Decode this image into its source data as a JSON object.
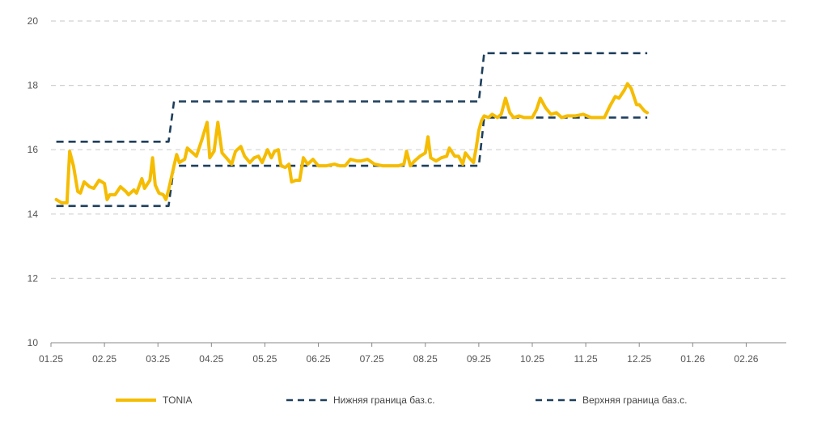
{
  "chart_data": {
    "type": "line",
    "title": "",
    "xlabel": "",
    "ylabel": "",
    "ylim": [
      10,
      20
    ],
    "yticks": [
      10,
      12,
      14,
      16,
      18,
      20
    ],
    "x_ticks": [
      "01.25",
      "02.25",
      "03.25",
      "04.25",
      "05.25",
      "06.25",
      "07.25",
      "08.25",
      "09.25",
      "10.25",
      "11.25",
      "12.25",
      "01.26",
      "02.26"
    ],
    "grid": true,
    "legend_position": "bottom",
    "series": [
      {
        "name": "TONIA",
        "color": "#F5BC00",
        "style": "solid",
        "points": [
          [
            0.1,
            14.45
          ],
          [
            0.2,
            14.35
          ],
          [
            0.3,
            14.35
          ],
          [
            0.35,
            15.95
          ],
          [
            0.42,
            15.5
          ],
          [
            0.5,
            14.7
          ],
          [
            0.55,
            14.65
          ],
          [
            0.62,
            15.0
          ],
          [
            0.72,
            14.85
          ],
          [
            0.8,
            14.8
          ],
          [
            0.9,
            15.05
          ],
          [
            1.0,
            14.95
          ],
          [
            1.05,
            14.45
          ],
          [
            1.1,
            14.6
          ],
          [
            1.2,
            14.6
          ],
          [
            1.3,
            14.85
          ],
          [
            1.4,
            14.7
          ],
          [
            1.45,
            14.6
          ],
          [
            1.55,
            14.75
          ],
          [
            1.6,
            14.65
          ],
          [
            1.7,
            15.1
          ],
          [
            1.75,
            14.8
          ],
          [
            1.85,
            15.05
          ],
          [
            1.9,
            15.75
          ],
          [
            1.95,
            14.9
          ],
          [
            2.02,
            14.65
          ],
          [
            2.1,
            14.6
          ],
          [
            2.15,
            14.45
          ],
          [
            2.2,
            14.75
          ],
          [
            2.3,
            15.5
          ],
          [
            2.35,
            15.85
          ],
          [
            2.4,
            15.6
          ],
          [
            2.5,
            15.7
          ],
          [
            2.55,
            16.05
          ],
          [
            2.62,
            15.95
          ],
          [
            2.72,
            15.8
          ],
          [
            2.82,
            16.3
          ],
          [
            2.92,
            16.85
          ],
          [
            2.97,
            15.75
          ],
          [
            3.05,
            15.95
          ],
          [
            3.12,
            16.85
          ],
          [
            3.2,
            15.9
          ],
          [
            3.28,
            15.75
          ],
          [
            3.38,
            15.55
          ],
          [
            3.45,
            15.95
          ],
          [
            3.55,
            16.1
          ],
          [
            3.62,
            15.8
          ],
          [
            3.72,
            15.6
          ],
          [
            3.8,
            15.75
          ],
          [
            3.88,
            15.8
          ],
          [
            3.95,
            15.6
          ],
          [
            4.05,
            16.0
          ],
          [
            4.12,
            15.75
          ],
          [
            4.18,
            15.95
          ],
          [
            4.25,
            16.0
          ],
          [
            4.3,
            15.5
          ],
          [
            4.38,
            15.45
          ],
          [
            4.45,
            15.55
          ],
          [
            4.5,
            15.0
          ],
          [
            4.58,
            15.05
          ],
          [
            4.65,
            15.05
          ],
          [
            4.72,
            15.75
          ],
          [
            4.8,
            15.55
          ],
          [
            4.9,
            15.7
          ],
          [
            5.0,
            15.5
          ],
          [
            5.15,
            15.5
          ],
          [
            5.3,
            15.55
          ],
          [
            5.4,
            15.5
          ],
          [
            5.5,
            15.5
          ],
          [
            5.6,
            15.7
          ],
          [
            5.72,
            15.65
          ],
          [
            5.8,
            15.65
          ],
          [
            5.92,
            15.7
          ],
          [
            6.05,
            15.55
          ],
          [
            6.2,
            15.5
          ],
          [
            6.35,
            15.5
          ],
          [
            6.5,
            15.5
          ],
          [
            6.6,
            15.55
          ],
          [
            6.65,
            15.95
          ],
          [
            6.72,
            15.5
          ],
          [
            6.8,
            15.65
          ],
          [
            6.9,
            15.8
          ],
          [
            7.0,
            15.9
          ],
          [
            7.05,
            16.4
          ],
          [
            7.1,
            15.75
          ],
          [
            7.2,
            15.65
          ],
          [
            7.3,
            15.75
          ],
          [
            7.4,
            15.8
          ],
          [
            7.45,
            16.05
          ],
          [
            7.55,
            15.8
          ],
          [
            7.62,
            15.8
          ],
          [
            7.7,
            15.55
          ],
          [
            7.75,
            15.9
          ],
          [
            7.82,
            15.75
          ],
          [
            7.9,
            15.6
          ],
          [
            7.95,
            16.05
          ],
          [
            8.0,
            16.6
          ],
          [
            8.05,
            16.9
          ],
          [
            8.1,
            17.05
          ],
          [
            8.18,
            17.0
          ],
          [
            8.25,
            17.1
          ],
          [
            8.35,
            17.0
          ],
          [
            8.42,
            17.1
          ],
          [
            8.5,
            17.6
          ],
          [
            8.58,
            17.15
          ],
          [
            8.65,
            17.0
          ],
          [
            8.75,
            17.05
          ],
          [
            8.85,
            17.0
          ],
          [
            9.0,
            17.0
          ],
          [
            9.08,
            17.25
          ],
          [
            9.15,
            17.6
          ],
          [
            9.25,
            17.3
          ],
          [
            9.35,
            17.1
          ],
          [
            9.45,
            17.15
          ],
          [
            9.55,
            17.0
          ],
          [
            9.65,
            17.05
          ],
          [
            9.8,
            17.05
          ],
          [
            9.95,
            17.1
          ],
          [
            10.1,
            17.0
          ],
          [
            10.25,
            17.0
          ],
          [
            10.35,
            17.0
          ],
          [
            10.45,
            17.35
          ],
          [
            10.55,
            17.65
          ],
          [
            10.62,
            17.6
          ],
          [
            10.72,
            17.85
          ],
          [
            10.78,
            18.05
          ],
          [
            10.85,
            17.9
          ],
          [
            10.95,
            17.4
          ],
          [
            11.0,
            17.4
          ],
          [
            11.1,
            17.2
          ],
          [
            11.15,
            17.15
          ]
        ]
      },
      {
        "name": "Нижняя граница баз.с.",
        "color": "#1E3F5C",
        "style": "dashed",
        "points": [
          [
            0.1,
            14.25
          ],
          [
            2.2,
            14.25
          ],
          [
            2.3,
            15.5
          ],
          [
            8.0,
            15.5
          ],
          [
            8.1,
            17.0
          ],
          [
            11.15,
            17.0
          ]
        ]
      },
      {
        "name": "Верхняя граница баз.с.",
        "color": "#1E3F5C",
        "style": "dashed",
        "points": [
          [
            0.1,
            16.25
          ],
          [
            2.2,
            16.25
          ],
          [
            2.3,
            17.5
          ],
          [
            8.0,
            17.5
          ],
          [
            8.1,
            19.0
          ],
          [
            11.15,
            19.0
          ]
        ]
      }
    ]
  }
}
